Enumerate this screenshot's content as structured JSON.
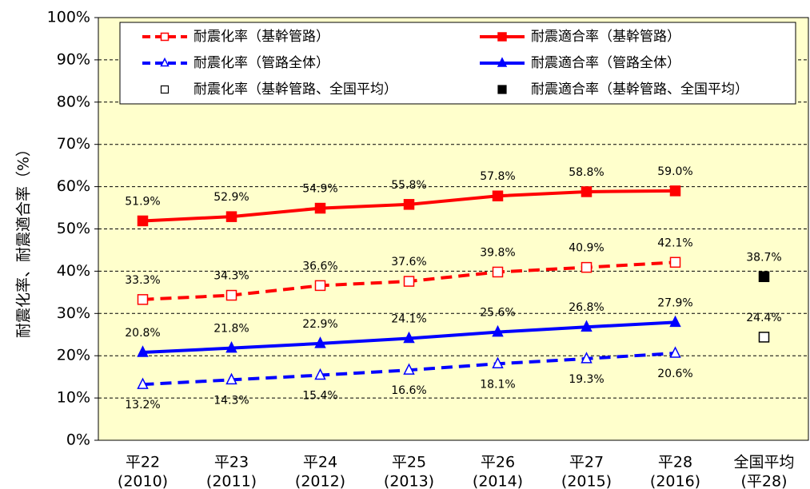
{
  "chart_data": {
    "type": "line",
    "y_label": "耐震化率、耐震適合率（%）",
    "categories": [
      [
        "平22",
        "(2010)"
      ],
      [
        "平23",
        "(2011)"
      ],
      [
        "平24",
        "(2012)"
      ],
      [
        "平25",
        "(2013)"
      ],
      [
        "平26",
        "(2014)"
      ],
      [
        "平27",
        "(2015)"
      ],
      [
        "平28",
        "(2016)"
      ],
      [
        "全国平均",
        "(平28)"
      ]
    ],
    "ylim": [
      0,
      100
    ],
    "yticks": [
      {
        "value": 0,
        "label": "0%"
      },
      {
        "value": 10,
        "label": "10%"
      },
      {
        "value": 20,
        "label": "20%"
      },
      {
        "value": 30,
        "label": "30%"
      },
      {
        "value": 40,
        "label": "40%"
      },
      {
        "value": 50,
        "label": "50%"
      },
      {
        "value": 60,
        "label": "60%"
      },
      {
        "value": 70,
        "label": "70%"
      },
      {
        "value": 80,
        "label": "80%"
      },
      {
        "value": 90,
        "label": "90%"
      },
      {
        "value": 100,
        "label": "100%"
      }
    ],
    "grid": true,
    "background": "#ffffcc",
    "series": [
      {
        "name": "耐震化率（基幹管路）",
        "color": "#ff0000",
        "dash": true,
        "marker": "square",
        "filled": false,
        "values": [
          33.3,
          34.3,
          36.6,
          37.6,
          39.8,
          40.9,
          42.1,
          null
        ],
        "value_labels": [
          "33.3%",
          "34.3%",
          "36.6%",
          "37.6%",
          "39.8%",
          "40.9%",
          "42.1%",
          null
        ]
      },
      {
        "name": "耐震適合率（基幹管路）",
        "color": "#ff0000",
        "dash": false,
        "marker": "square",
        "filled": true,
        "values": [
          51.9,
          52.9,
          54.9,
          55.8,
          57.8,
          58.8,
          59.0,
          null
        ],
        "value_labels": [
          "51.9%",
          "52.9%",
          "54.9%",
          "55.8%",
          "57.8%",
          "58.8%",
          "59.0%",
          null
        ]
      },
      {
        "name": "耐震化率（管路全体）",
        "color": "#0000ff",
        "dash": true,
        "marker": "triangle",
        "filled": false,
        "values": [
          13.2,
          14.3,
          15.4,
          16.6,
          18.1,
          19.3,
          20.6,
          null
        ],
        "value_labels": [
          "13.2%",
          "14.3%",
          "15.4%",
          "16.6%",
          "18.1%",
          "19.3%",
          "20.6%",
          null
        ]
      },
      {
        "name": "耐震適合率（管路全体）",
        "color": "#0000ff",
        "dash": false,
        "marker": "triangle",
        "filled": true,
        "values": [
          20.8,
          21.8,
          22.9,
          24.1,
          25.6,
          26.8,
          27.9,
          null
        ],
        "value_labels": [
          "20.8%",
          "21.8%",
          "22.9%",
          "24.1%",
          "25.6%",
          "26.8%",
          "27.9%",
          null
        ]
      },
      {
        "name": "耐震化率（基幹管路、全国平均）",
        "color": "#000000",
        "dash": false,
        "marker": "square",
        "filled": false,
        "values": [
          null,
          null,
          null,
          null,
          null,
          null,
          null,
          24.4
        ],
        "value_labels": [
          null,
          null,
          null,
          null,
          null,
          null,
          null,
          "24.4%"
        ]
      },
      {
        "name": "耐震適合率（基幹管路、全国平均）",
        "color": "#000000",
        "dash": false,
        "marker": "square",
        "filled": true,
        "values": [
          null,
          null,
          null,
          null,
          null,
          null,
          null,
          38.7
        ],
        "value_labels": [
          null,
          null,
          null,
          null,
          null,
          null,
          null,
          "38.7%"
        ]
      }
    ]
  }
}
